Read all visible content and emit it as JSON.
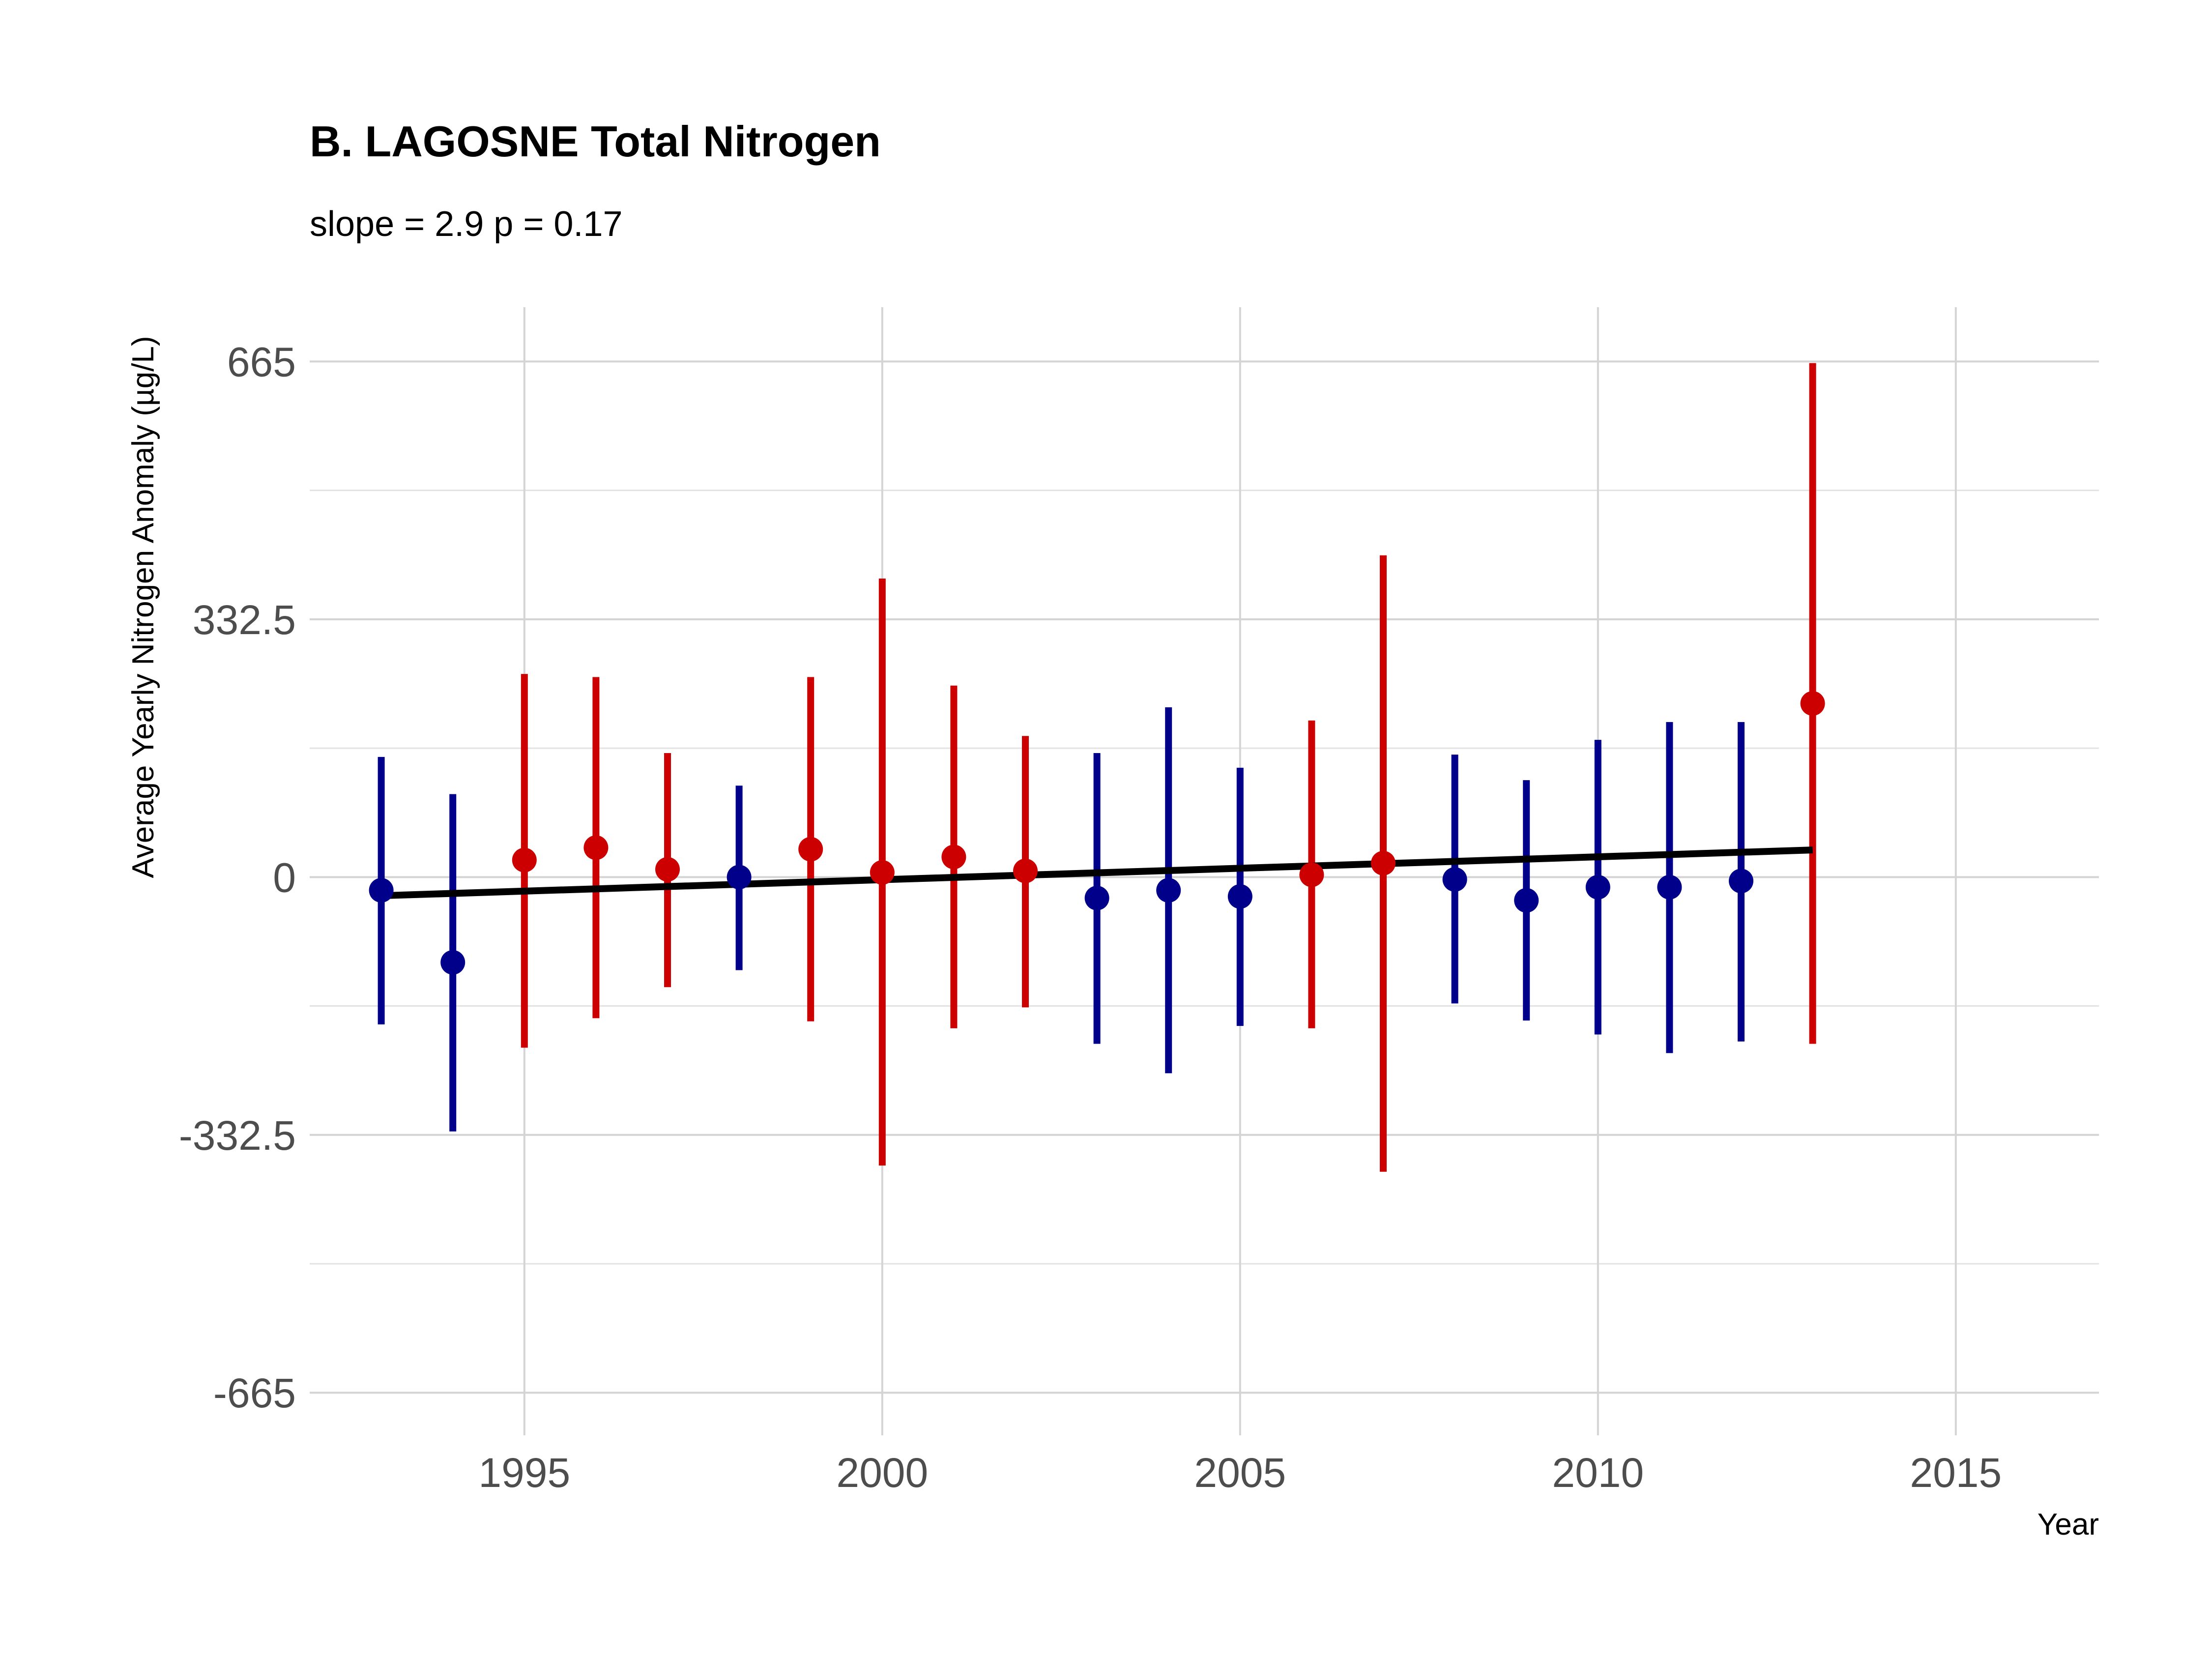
{
  "chart_data": {
    "type": "scatter",
    "title": "B. LAGOSNE Total Nitrogen",
    "subtitle": "slope = 2.9 p = 0.17",
    "xlabel": "Year",
    "ylabel": "Average Yearly Nitrogen Anomaly (µg/L)",
    "xlim": [
      1992,
      2017
    ],
    "ylim": [
      -720,
      735
    ],
    "x_ticks": [
      1995,
      2000,
      2005,
      2010,
      2015
    ],
    "y_ticks": [
      665,
      332.5,
      0,
      -332.5,
      -665
    ],
    "y_tick_labels": [
      "665",
      "332.5",
      "0",
      "-332.5",
      "-665"
    ],
    "grid": true,
    "colors": {
      "above": "#cc0000",
      "below": "#00008b",
      "trend": "#000000"
    },
    "points": [
      {
        "year": 1993,
        "value": -17,
        "low": -190,
        "high": 155,
        "color": "#00008b"
      },
      {
        "year": 1994,
        "value": -110,
        "low": -328,
        "high": 107,
        "color": "#00008b"
      },
      {
        "year": 1995,
        "value": 22,
        "low": -220,
        "high": 262,
        "color": "#cc0000"
      },
      {
        "year": 1996,
        "value": 38,
        "low": -182,
        "high": 258,
        "color": "#cc0000"
      },
      {
        "year": 1997,
        "value": 10,
        "low": -142,
        "high": 160,
        "color": "#cc0000"
      },
      {
        "year": 1998,
        "value": 0,
        "low": -120,
        "high": 118,
        "color": "#00008b"
      },
      {
        "year": 1999,
        "value": 36,
        "low": -186,
        "high": 258,
        "color": "#cc0000"
      },
      {
        "year": 2000,
        "value": 6,
        "low": -372,
        "high": 385,
        "color": "#cc0000"
      },
      {
        "year": 2001,
        "value": 26,
        "low": -195,
        "high": 247,
        "color": "#cc0000"
      },
      {
        "year": 2002,
        "value": 8,
        "low": -168,
        "high": 182,
        "color": "#cc0000"
      },
      {
        "year": 2003,
        "value": -27,
        "low": -215,
        "high": 160,
        "color": "#00008b"
      },
      {
        "year": 2004,
        "value": -17,
        "low": -253,
        "high": 219,
        "color": "#00008b"
      },
      {
        "year": 2005,
        "value": -25,
        "low": -192,
        "high": 141,
        "color": "#00008b"
      },
      {
        "year": 2006,
        "value": 3,
        "low": -195,
        "high": 202,
        "color": "#cc0000"
      },
      {
        "year": 2007,
        "value": 18,
        "low": -380,
        "high": 415,
        "color": "#cc0000"
      },
      {
        "year": 2008,
        "value": -3,
        "low": -163,
        "high": 158,
        "color": "#00008b"
      },
      {
        "year": 2009,
        "value": -30,
        "low": -185,
        "high": 125,
        "color": "#00008b"
      },
      {
        "year": 2010,
        "value": -13,
        "low": -203,
        "high": 177,
        "color": "#00008b"
      },
      {
        "year": 2011,
        "value": -13,
        "low": -227,
        "high": 200,
        "color": "#00008b"
      },
      {
        "year": 2012,
        "value": -5,
        "low": -212,
        "high": 200,
        "color": "#00008b"
      },
      {
        "year": 2013,
        "value": 224,
        "low": -215,
        "high": 663,
        "color": "#cc0000"
      }
    ],
    "trend_line": {
      "x": [
        1993,
        2013
      ],
      "y": [
        -24,
        35
      ]
    }
  }
}
